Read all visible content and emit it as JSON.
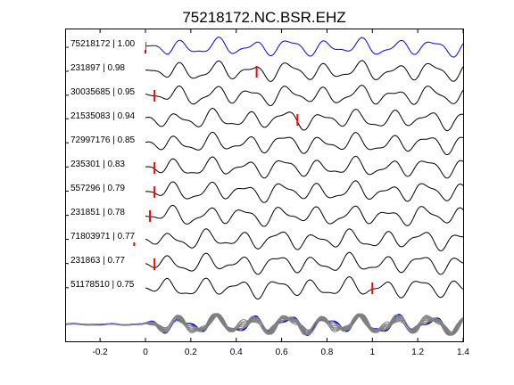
{
  "chart_data": {
    "type": "line",
    "title": "75218172.NC.BSR.EHZ",
    "xlabel": "",
    "ylabel": "",
    "xlim": [
      -0.35,
      1.4
    ],
    "xticks": [
      -0.2,
      0,
      0.2,
      0.4,
      0.6,
      0.8,
      1,
      1.2,
      1.4
    ],
    "xtick_labels": [
      "-0.2",
      "0",
      "0.2",
      "0.4",
      "0.6",
      "0.8",
      "1",
      "1.2",
      "1.4"
    ],
    "grid": false,
    "traces": [
      {
        "label": "75218172 | 1.00",
        "pick_time": 0.0,
        "color": "#0000ff"
      },
      {
        "label": "231897 | 0.98",
        "pick_time": 0.49,
        "color": "#000000"
      },
      {
        "label": "30035685 | 0.95",
        "pick_time": 0.04,
        "color": "#000000"
      },
      {
        "label": "21535083 | 0.94",
        "pick_time": 0.67,
        "color": "#000000"
      },
      {
        "label": "72997176 | 0.85",
        "pick_time": null,
        "color": "#000000"
      },
      {
        "label": "235301 | 0.83",
        "pick_time": 0.04,
        "color": "#000000"
      },
      {
        "label": "557296 | 0.79",
        "pick_time": 0.04,
        "color": "#000000"
      },
      {
        "label": "231851 | 0.78",
        "pick_time": 0.02,
        "color": "#000000"
      },
      {
        "label": "71803971 | 0.77",
        "pick_time": -0.05,
        "color": "#000000"
      },
      {
        "label": "231863 | 0.77",
        "pick_time": 0.04,
        "color": "#000000"
      },
      {
        "label": "51178510 | 0.75",
        "pick_time": 1.0,
        "color": "#000000"
      }
    ],
    "stack_color": "#808080",
    "pick_color": "#ff0000"
  }
}
